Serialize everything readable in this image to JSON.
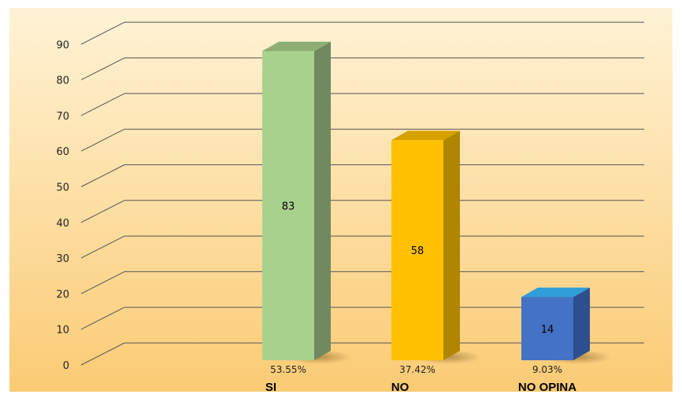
{
  "chart_data": {
    "type": "bar",
    "style": "3d",
    "categories": [
      "SI",
      "NO",
      "NO OPINA"
    ],
    "values": [
      83,
      58,
      14
    ],
    "percentages": [
      "53.55%",
      "37.42%",
      "9.03%"
    ],
    "colors": {
      "SI": {
        "front": "#A9D18E",
        "side": "#70895E",
        "top": "#8DAF74"
      },
      "NO": {
        "front": "#FFC000",
        "side": "#B08500",
        "top": "#D7A100"
      },
      "NO OPINA": {
        "front": "#4472C4",
        "side": "#2D4E8F",
        "top": "#2E9FD8"
      }
    },
    "background": {
      "top": "#FFF3D6",
      "bottom": "#FBCB74"
    },
    "ylim": [
      0,
      90
    ],
    "yticks": [
      0,
      10,
      20,
      30,
      40,
      50,
      60,
      70,
      80,
      90
    ],
    "grid": true,
    "legend": "none",
    "title": "",
    "xlabel": "",
    "ylabel": ""
  }
}
